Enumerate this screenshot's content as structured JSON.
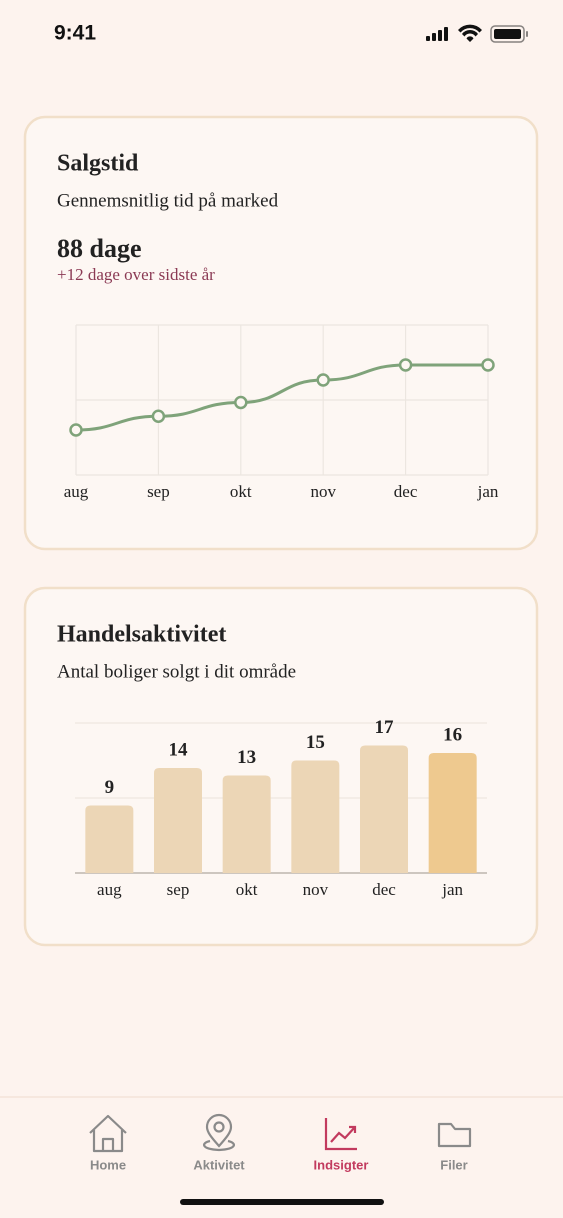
{
  "status_bar": {
    "time": "9:41"
  },
  "chart_data": [
    {
      "type": "line",
      "title": "Salgstid",
      "subtitle": "Gennemsnitlig tid på marked",
      "headline": "88 dage",
      "change": "+12 dage over sidste år",
      "categories": [
        "aug",
        "sep",
        "okt",
        "nov",
        "dec",
        "jan"
      ],
      "series": [
        {
          "color": "#7fa37a",
          "values": [
            36,
            47,
            58,
            76,
            88,
            88
          ]
        }
      ],
      "ylim": [
        0,
        120
      ],
      "yticks": [
        0,
        60,
        120
      ],
      "grid": true
    },
    {
      "type": "bar",
      "title": "Handelsaktivitet",
      "subtitle": "Antal boliger solgt i dit område",
      "categories": [
        "aug",
        "sep",
        "okt",
        "nov",
        "dec",
        "jan"
      ],
      "values": [
        9,
        14,
        13,
        15,
        17,
        16
      ],
      "colors": [
        "#ecd6b6",
        "#ecd6b6",
        "#ecd6b6",
        "#ecd6b6",
        "#ecd6b6",
        "#eec98f"
      ],
      "ylim": [
        0,
        20
      ],
      "yticks": [
        0,
        10,
        20
      ],
      "grid": true
    }
  ],
  "nav": {
    "items": [
      "Home",
      "Aktivitet",
      "Indsigter",
      "Filer"
    ],
    "active": 2
  }
}
